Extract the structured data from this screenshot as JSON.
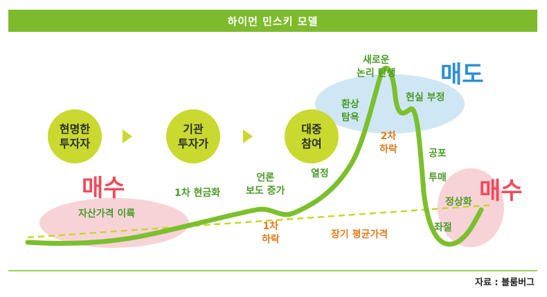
{
  "title": "하이먼 민스키 모델",
  "stages": [
    "현명한\n투자자",
    "기관\n투자가",
    "대중\n참여"
  ],
  "labels": {
    "asset_price_rise": "자산가격 이륙",
    "first_cash": "1차 현금화",
    "media": "언론\n보도 증가",
    "enthusiasm": "열정",
    "euphoria": "환상\n탐욕",
    "new_logic": "새로운\n논리 탄생",
    "denial": "현실 부정",
    "fear": "공포",
    "panic_sell": "투매",
    "normalize": "정상화",
    "despair": "좌절",
    "first_drop": "1차\n하락",
    "second_drop": "2차\n하락",
    "long_term_avg": "장기 평균가격"
  },
  "actions": {
    "buy_left": "매수",
    "sell": "매도",
    "buy_right": "매수"
  },
  "source": "자료 : 블룸버그",
  "colors": {
    "header": "#7dbb2c",
    "curve": "#7cbf2c",
    "avg_line": "#c8d42a",
    "buy": "#f04a5c",
    "sell": "#2a8fd6",
    "buy_ellipse": "#f7d3d8",
    "sell_ellipse": "#cfe7f5"
  }
}
